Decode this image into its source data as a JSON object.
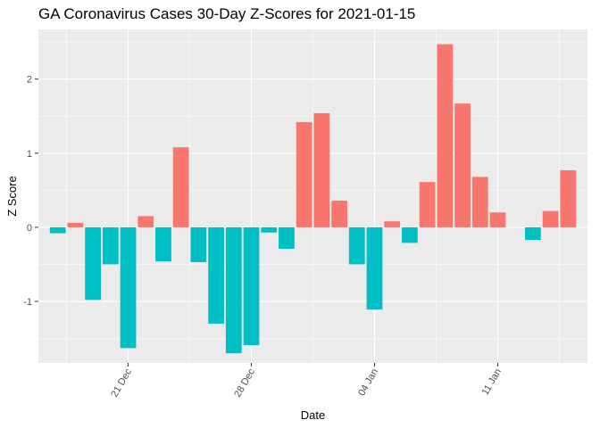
{
  "chart_data": {
    "type": "bar",
    "title": "GA Coronavirus Cases 30-Day Z-Scores for 2021-01-15",
    "xlabel": "Date",
    "ylabel": "Z Score",
    "x": [
      "2020-12-17",
      "2020-12-18",
      "2020-12-19",
      "2020-12-20",
      "2020-12-21",
      "2020-12-22",
      "2020-12-23",
      "2020-12-24",
      "2020-12-25",
      "2020-12-26",
      "2020-12-27",
      "2020-12-28",
      "2020-12-29",
      "2020-12-30",
      "2020-12-31",
      "2021-01-01",
      "2021-01-02",
      "2021-01-03",
      "2021-01-04",
      "2021-01-05",
      "2021-01-06",
      "2021-01-07",
      "2021-01-08",
      "2021-01-09",
      "2021-01-10",
      "2021-01-11",
      "2021-01-12",
      "2021-01-13",
      "2021-01-14",
      "2021-01-15"
    ],
    "values": [
      -0.08,
      0.06,
      -0.98,
      -0.5,
      -1.63,
      0.15,
      -0.46,
      1.08,
      -0.47,
      -1.3,
      -1.7,
      -1.59,
      -0.07,
      -0.29,
      1.42,
      1.54,
      0.36,
      -0.5,
      -1.11,
      0.08,
      -0.21,
      0.61,
      2.47,
      1.67,
      0.68,
      0.2,
      0.0,
      -0.17,
      0.22,
      0.77
    ],
    "positive_color": "#F8766D",
    "negative_color": "#00BFC4",
    "panel_background": "#EBEBEB",
    "grid": true,
    "ylim": [
      -1.83,
      2.67
    ],
    "y_ticks": [
      -1,
      0,
      1,
      2
    ],
    "x_ticks": [
      {
        "date": "2020-12-21",
        "label": "21 Dec"
      },
      {
        "date": "2020-12-28",
        "label": "28 Dec"
      },
      {
        "date": "2021-01-04",
        "label": "04 Jan"
      },
      {
        "date": "2021-01-11",
        "label": "11 Jan"
      }
    ]
  }
}
